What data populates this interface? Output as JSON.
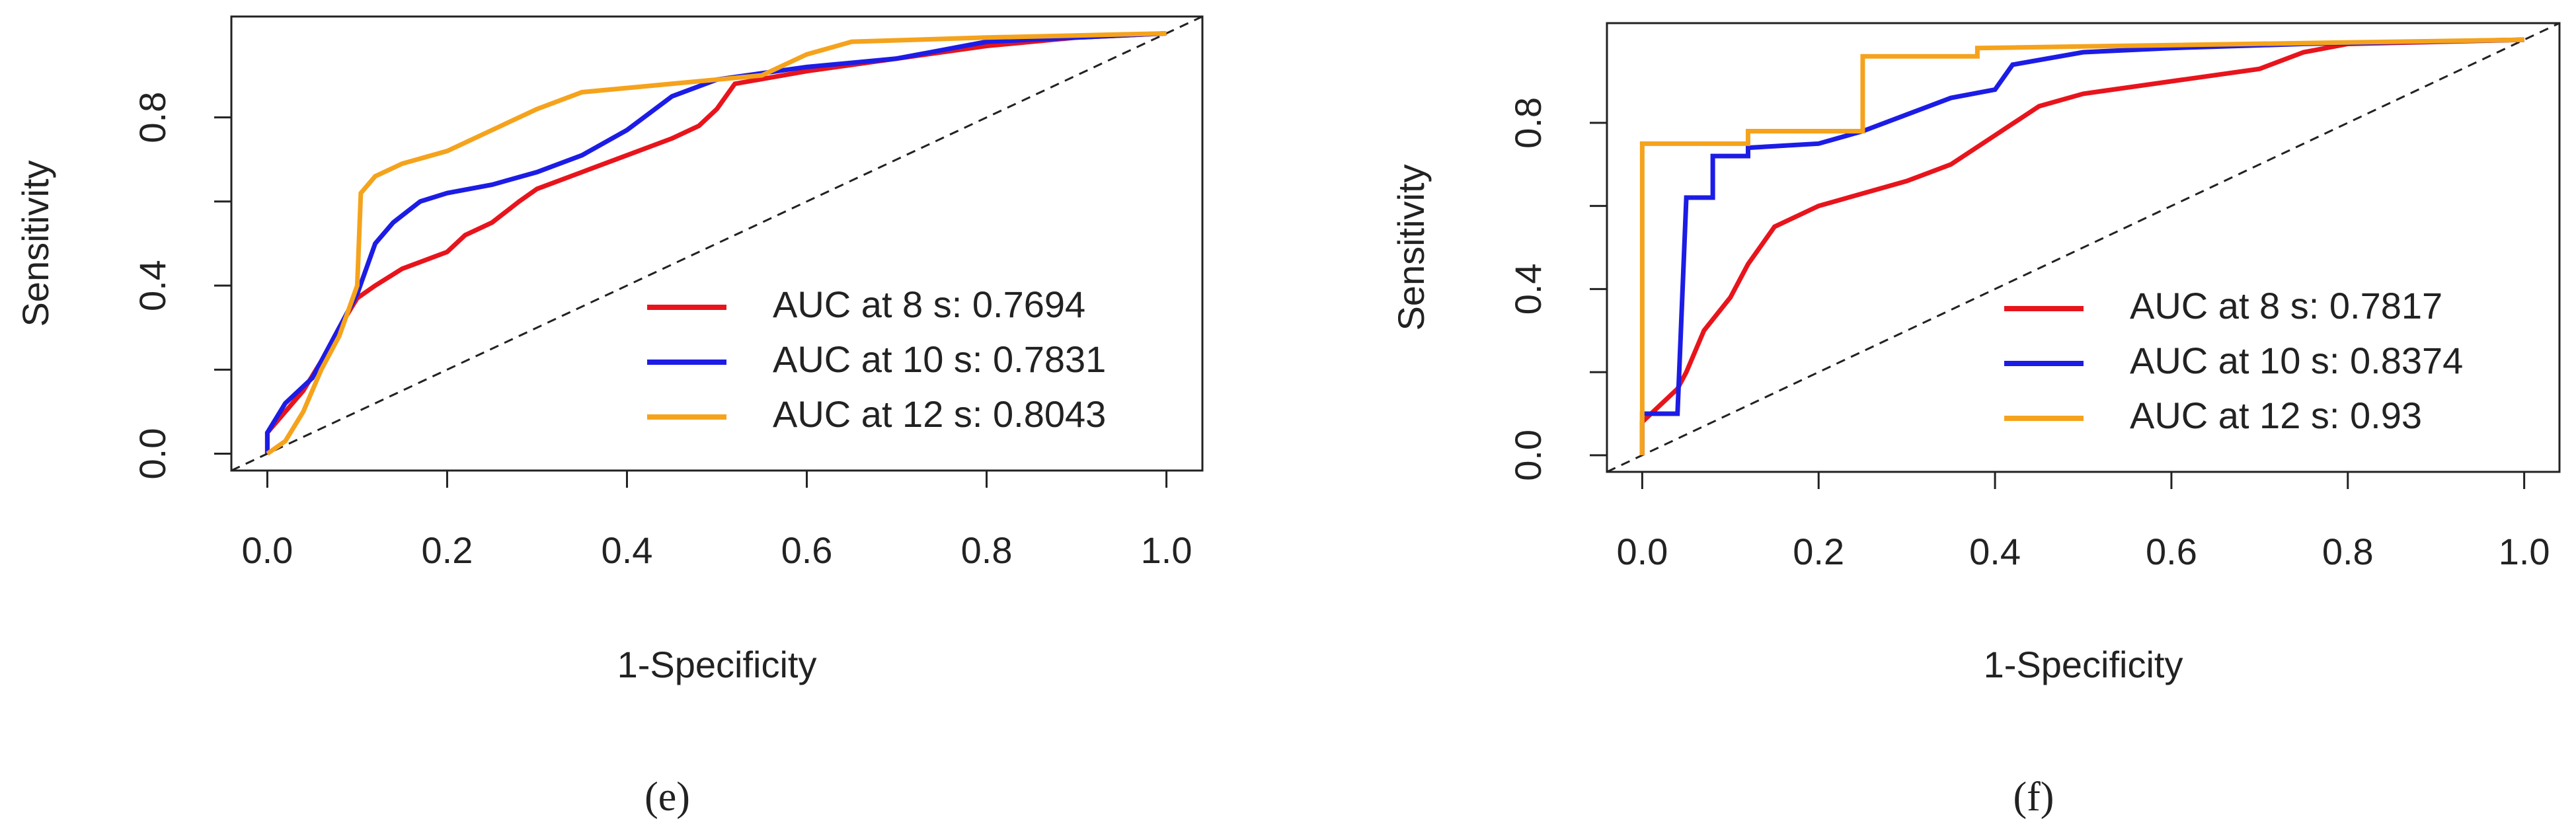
{
  "chart_data": [
    {
      "type": "line",
      "xlabel": "1-Specificity",
      "ylabel": "Sensitivity",
      "panel_label": "(e)",
      "xlim": [
        -0.04,
        1.04
      ],
      "ylim": [
        -0.04,
        1.04
      ],
      "xticks": [
        {
          "value": 0,
          "label": "0.0"
        },
        0.2,
        0.4,
        0.6,
        0.8,
        {
          "value": 1,
          "label": "1.0"
        }
      ],
      "yticks": [
        {
          "value": 0,
          "label": "0.0"
        },
        0.4,
        0.8
      ],
      "yminorticks": [
        0.2,
        0.6
      ],
      "legend": "bottomright",
      "diagonal": true,
      "series": [
        {
          "name": "AUC at 8 s: 0.7694",
          "color": "#e8141c",
          "x": [
            0,
            0,
            0.02,
            0.04,
            0.06,
            0.08,
            0.1,
            0.12,
            0.15,
            0.2,
            0.22,
            0.25,
            0.28,
            0.3,
            0.35,
            0.4,
            0.45,
            0.48,
            0.5,
            0.52,
            0.6,
            0.7,
            0.8,
            0.9,
            1
          ],
          "values": [
            0,
            0.05,
            0.1,
            0.15,
            0.22,
            0.3,
            0.37,
            0.4,
            0.44,
            0.48,
            0.52,
            0.55,
            0.6,
            0.63,
            0.67,
            0.71,
            0.75,
            0.78,
            0.82,
            0.88,
            0.91,
            0.94,
            0.97,
            0.99,
            1
          ]
        },
        {
          "name": "AUC at 10 s: 0.7831",
          "color": "#1c1ce6",
          "x": [
            0,
            0,
            0.02,
            0.05,
            0.08,
            0.1,
            0.12,
            0.14,
            0.17,
            0.2,
            0.25,
            0.3,
            0.35,
            0.4,
            0.45,
            0.5,
            0.6,
            0.7,
            0.8,
            0.9,
            1
          ],
          "values": [
            0,
            0.05,
            0.12,
            0.18,
            0.3,
            0.38,
            0.5,
            0.55,
            0.6,
            0.62,
            0.64,
            0.67,
            0.71,
            0.77,
            0.85,
            0.89,
            0.92,
            0.94,
            0.98,
            0.99,
            1
          ]
        },
        {
          "name": "AUC at 12 s: 0.8043",
          "color": "#f5a31c",
          "x": [
            0,
            0.02,
            0.04,
            0.06,
            0.08,
            0.1,
            0.104,
            0.12,
            0.15,
            0.2,
            0.25,
            0.3,
            0.35,
            0.45,
            0.55,
            0.6,
            0.65,
            0.8,
            1
          ],
          "values": [
            0,
            0.03,
            0.1,
            0.2,
            0.28,
            0.4,
            0.62,
            0.66,
            0.69,
            0.72,
            0.77,
            0.82,
            0.86,
            0.88,
            0.9,
            0.95,
            0.98,
            0.99,
            1
          ]
        }
      ]
    },
    {
      "type": "line",
      "xlabel": "1-Specificity",
      "ylabel": "Sensitivity",
      "panel_label": "(f)",
      "xlim": [
        -0.04,
        1.04
      ],
      "ylim": [
        -0.04,
        1.04
      ],
      "xticks": [
        {
          "value": 0,
          "label": "0.0"
        },
        0.2,
        0.4,
        0.6,
        0.8,
        {
          "value": 1,
          "label": "1.0"
        }
      ],
      "yticks": [
        {
          "value": 0,
          "label": "0.0"
        },
        0.4,
        0.8
      ],
      "yminorticks": [
        0.2,
        0.6
      ],
      "legend": "bottomright",
      "diagonal": true,
      "series": [
        {
          "name": "AUC at 8 s: 0.7817",
          "color": "#e8141c",
          "x": [
            0,
            0,
            0.02,
            0.04,
            0.05,
            0.07,
            0.1,
            0.12,
            0.15,
            0.2,
            0.25,
            0.3,
            0.35,
            0.4,
            0.45,
            0.5,
            0.6,
            0.7,
            0.75,
            0.8,
            1
          ],
          "values": [
            0,
            0.08,
            0.12,
            0.16,
            0.2,
            0.3,
            0.38,
            0.46,
            0.55,
            0.6,
            0.63,
            0.66,
            0.7,
            0.77,
            0.84,
            0.87,
            0.9,
            0.93,
            0.97,
            0.99,
            1
          ]
        },
        {
          "name": "AUC at 10 s: 0.8374",
          "color": "#1c1ce6",
          "x": [
            0,
            0,
            0.04,
            0.05,
            0.08,
            0.08,
            0.12,
            0.12,
            0.2,
            0.25,
            0.3,
            0.35,
            0.4,
            0.42,
            0.5,
            0.6,
            0.75,
            1
          ],
          "values": [
            0,
            0.1,
            0.1,
            0.62,
            0.62,
            0.72,
            0.72,
            0.74,
            0.75,
            0.78,
            0.82,
            0.86,
            0.88,
            0.94,
            0.97,
            0.98,
            0.99,
            1
          ]
        },
        {
          "name": "AUC at 12 s: 0.93",
          "color": "#f5a31c",
          "x": [
            0,
            0,
            0.12,
            0.12,
            0.25,
            0.25,
            0.38,
            0.38,
            1
          ],
          "values": [
            0,
            0.75,
            0.75,
            0.78,
            0.78,
            0.96,
            0.96,
            0.98,
            1
          ]
        }
      ]
    }
  ]
}
